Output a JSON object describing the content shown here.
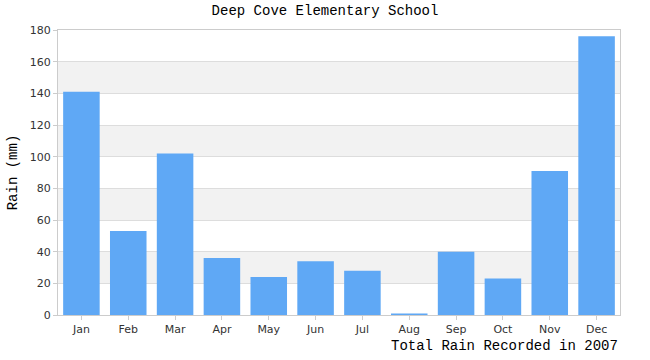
{
  "chart_data": {
    "type": "bar",
    "title": "Deep Cove Elementary School",
    "x_label": "Total Rain Recorded in 2007",
    "y_label": "Rain (mm)",
    "categories": [
      "Jan",
      "Feb",
      "Mar",
      "Apr",
      "May",
      "Jun",
      "Jul",
      "Aug",
      "Sep",
      "Oct",
      "Nov",
      "Dec"
    ],
    "values": [
      141,
      53,
      102,
      36,
      24,
      34,
      28,
      1,
      40,
      23,
      91,
      176
    ],
    "color": "#5fa8f5",
    "ylim": [
      0,
      180
    ],
    "yticks": [
      0,
      20,
      40,
      60,
      80,
      100,
      120,
      140,
      160,
      180
    ],
    "grid": true
  }
}
